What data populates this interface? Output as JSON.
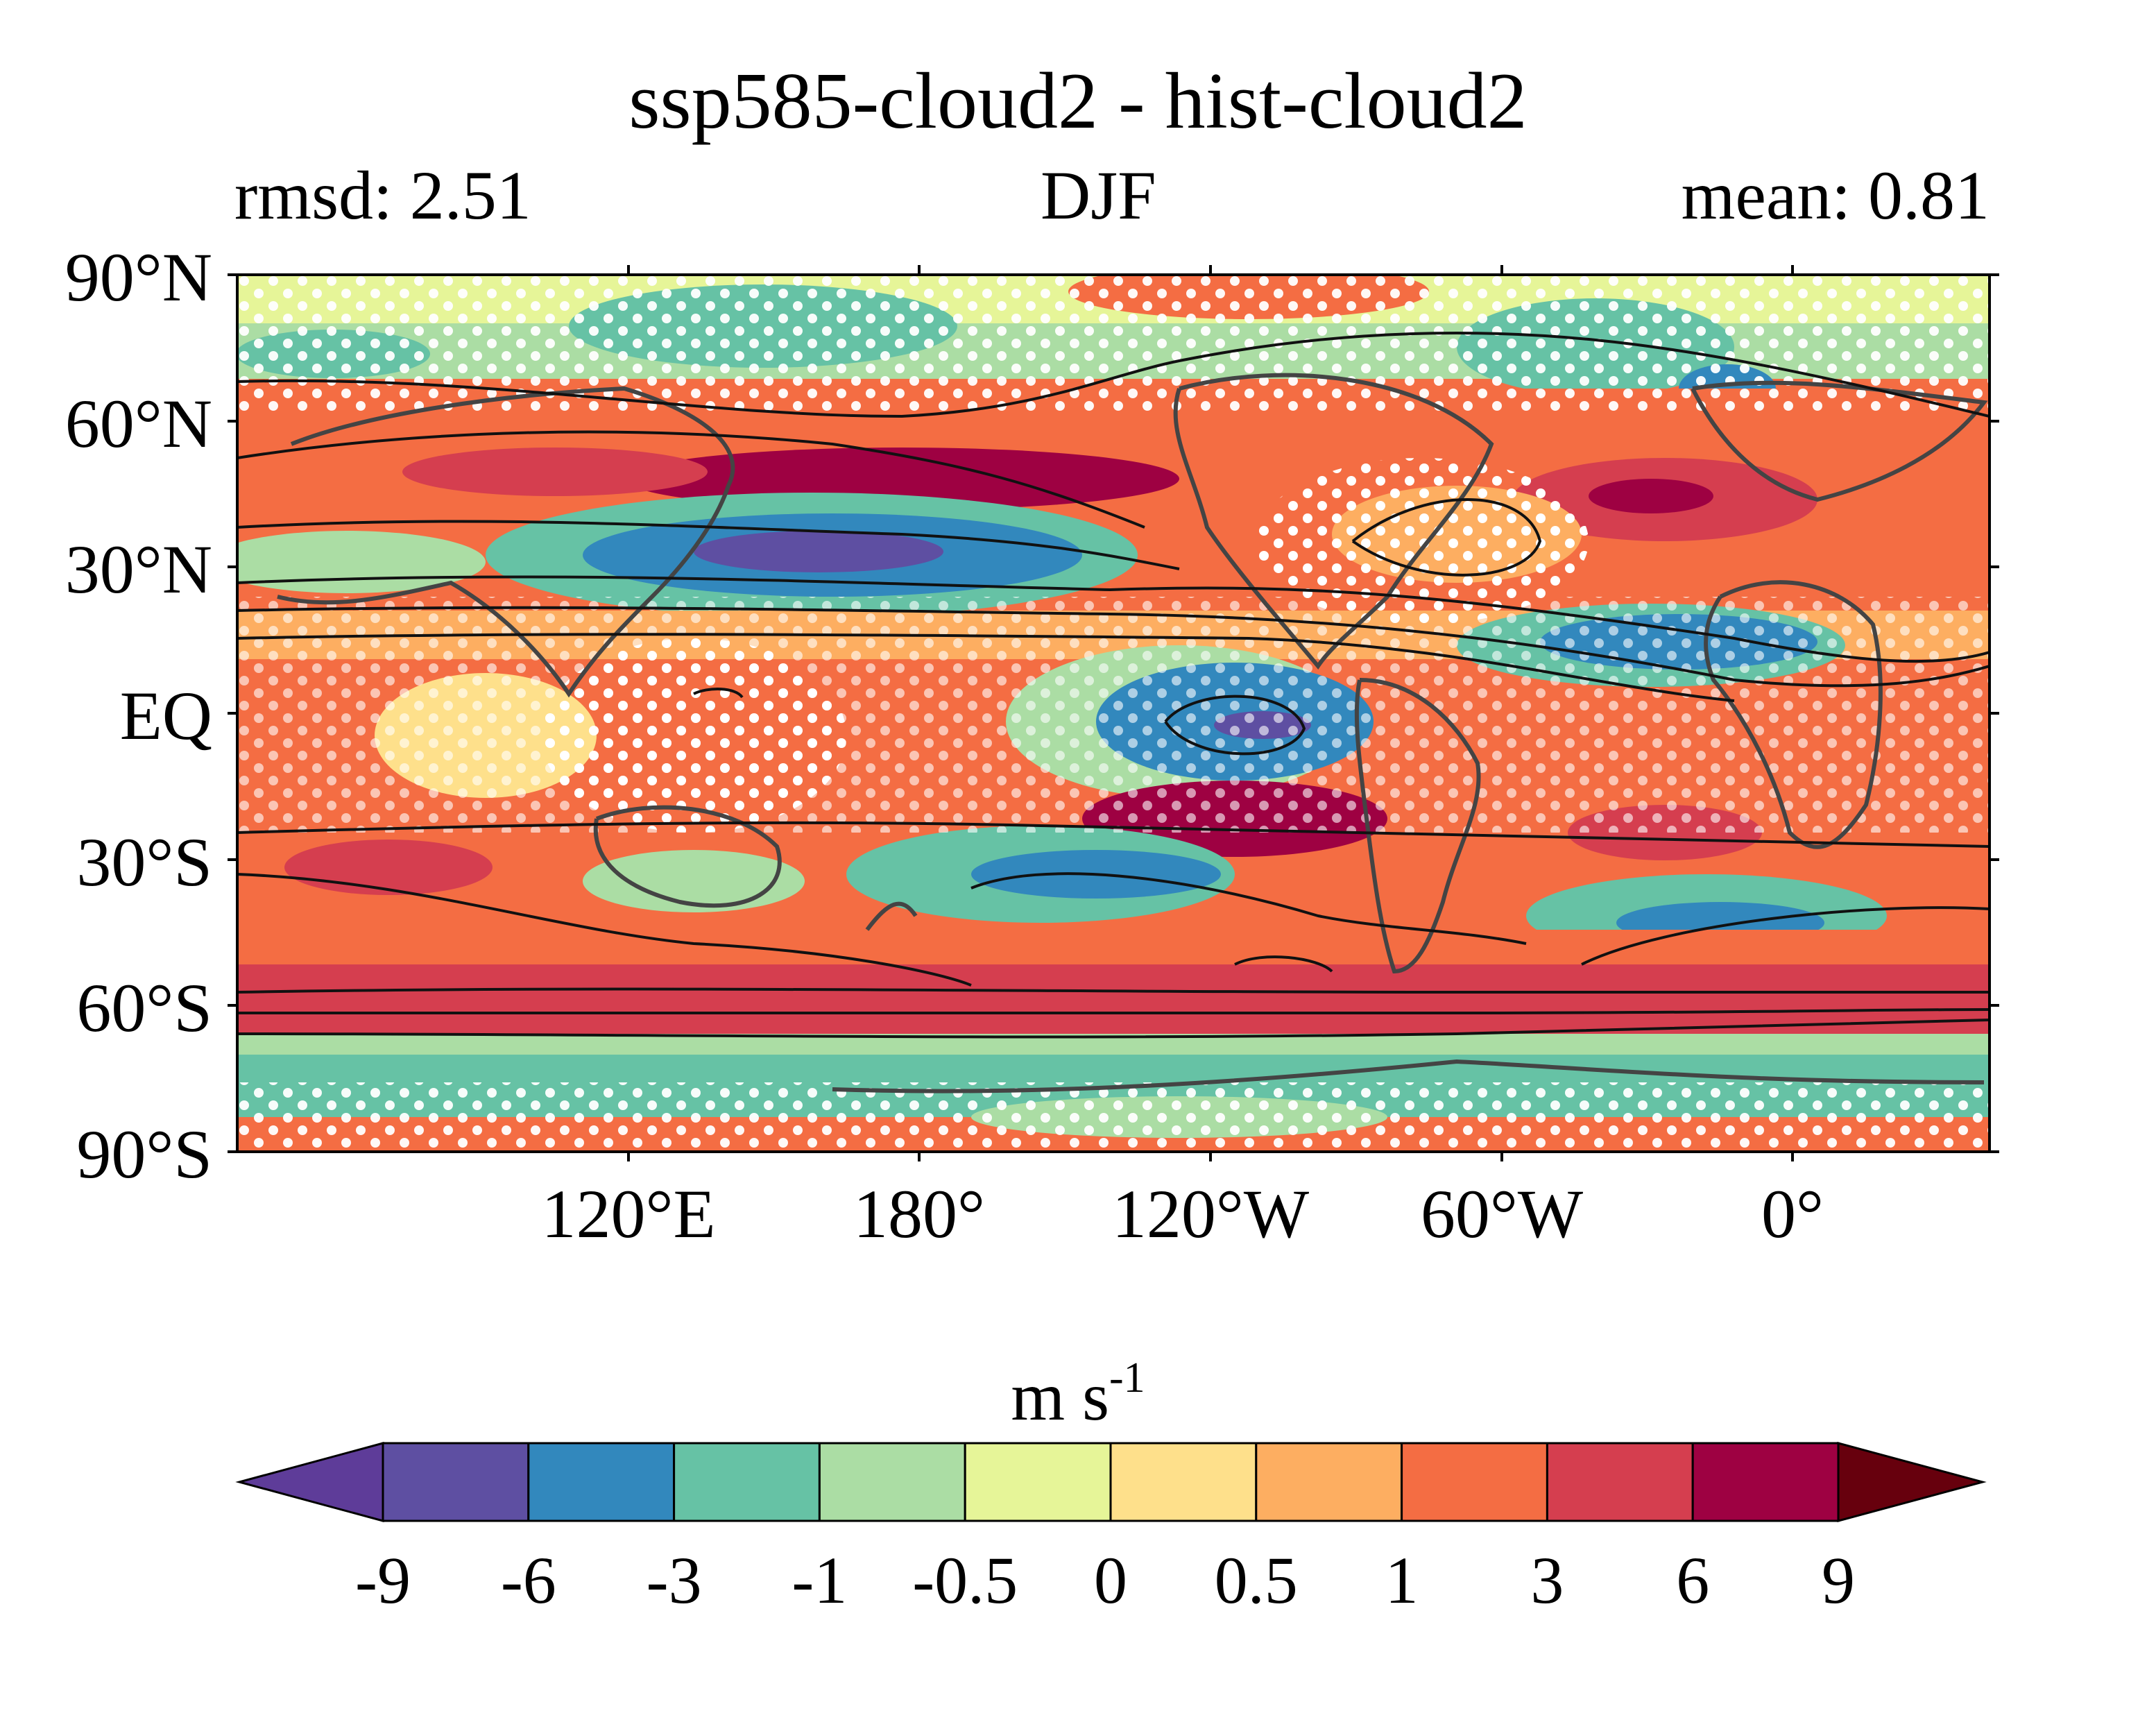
{
  "title": "ssp585-cloud2 - hist-cloud2",
  "subtitle_left": "rmsd: 2.51",
  "subtitle_center": "DJF",
  "subtitle_right": "mean: 0.81",
  "map": {
    "projection": "equirectangular",
    "lat_labels": [
      "90°N",
      "60°N",
      "30°N",
      "EQ",
      "30°S",
      "60°S",
      "90°S"
    ],
    "lon_labels": [
      "120°E",
      "180°",
      "120°W",
      "60°W",
      "0°"
    ],
    "stippling": "white dots (significance)",
    "contours": "black lines (climatology)"
  },
  "colorbar": {
    "units_base": "m s",
    "units_exp": "-1",
    "ticks": [
      "-9",
      "-6",
      "-3",
      "-1",
      "-0.5",
      "0",
      "0.5",
      "1",
      "3",
      "6",
      "9"
    ],
    "colors": [
      "#5e3c99",
      "#5e4fa2",
      "#3288bd",
      "#66c2a5",
      "#abdda4",
      "#e6f598",
      "#fee08b",
      "#fdae61",
      "#f46d43",
      "#d53e4f",
      "#9e0142",
      "#67000d"
    ],
    "extend": "both"
  }
}
